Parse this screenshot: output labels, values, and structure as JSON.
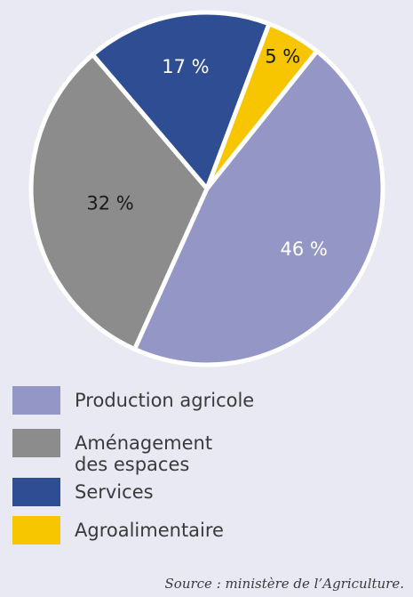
{
  "chart_data": {
    "type": "pie",
    "categories": [
      "Production agricole",
      "Aménagement des espaces",
      "Services",
      "Agroalimentaire"
    ],
    "values": [
      46,
      32,
      17,
      5
    ],
    "labels": [
      "46 %",
      "32 %",
      "17 %",
      "5 %"
    ],
    "colors": [
      "#9497c5",
      "#8c8c8c",
      "#2e4d92",
      "#f8c600"
    ],
    "label_colors": [
      "#ffffff",
      "#1a1a1a",
      "#ffffff",
      "#1a1a1a"
    ],
    "legend_position": "bottom-left"
  },
  "legend": [
    {
      "lines": [
        "Production agricole"
      ],
      "color": "#9497c5"
    },
    {
      "lines": [
        "Aménagement",
        "des espaces"
      ],
      "color": "#8c8c8c"
    },
    {
      "lines": [
        "Services"
      ],
      "color": "#2e4d92"
    },
    {
      "lines": [
        "Agroalimentaire"
      ],
      "color": "#f8c600"
    }
  ],
  "source": "Source : ministère de l’Agriculture."
}
